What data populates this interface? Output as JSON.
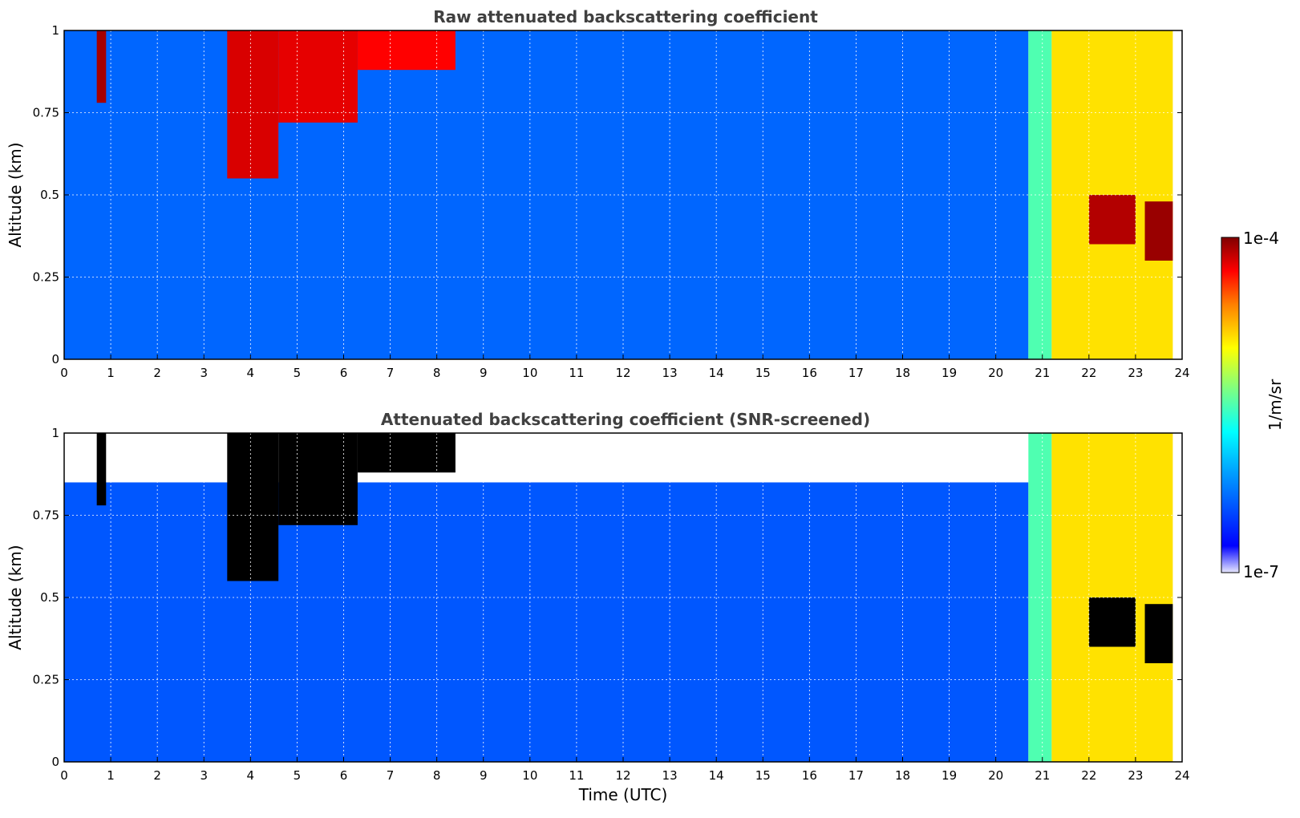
{
  "chart_data": [
    {
      "type": "heatmap",
      "title": "Raw attenuated backscattering coefficient",
      "xlabel": "",
      "ylabel": "Altitude (km)",
      "xlim": [
        0,
        24
      ],
      "ylim": [
        0,
        1
      ],
      "xticks": [
        "0",
        "1",
        "2",
        "3",
        "4",
        "5",
        "6",
        "7",
        "8",
        "9",
        "10",
        "11",
        "12",
        "13",
        "14",
        "15",
        "16",
        "17",
        "18",
        "19",
        "20",
        "21",
        "22",
        "23",
        "24"
      ],
      "yticks": [
        "0",
        "0.25",
        "0.5",
        "0.75",
        "1"
      ],
      "grid": true,
      "colorscale": "jet",
      "features": [
        {
          "start": 0,
          "end": 20.7,
          "top": 1,
          "level": 0.22
        },
        {
          "start": 0.7,
          "end": 0.9,
          "bottom": 0.78,
          "top": 1,
          "level": 0.97
        },
        {
          "start": 3.5,
          "end": 4.6,
          "bottom": 0.55,
          "top": 1,
          "level": 0.93
        },
        {
          "start": 4.6,
          "end": 6.3,
          "bottom": 0.72,
          "top": 1,
          "level": 0.92
        },
        {
          "start": 6.3,
          "end": 8.4,
          "bottom": 0.88,
          "top": 1,
          "level": 0.9
        },
        {
          "start": 20.7,
          "end": 21.2,
          "bottom": 0,
          "top": 1,
          "level": 0.5
        },
        {
          "start": 21.2,
          "end": 23.8,
          "bottom": 0,
          "top": 1,
          "level": 0.7
        },
        {
          "start": 22,
          "end": 23,
          "bottom": 0.35,
          "top": 0.5,
          "level": 0.96
        },
        {
          "start": 23.2,
          "end": 23.8,
          "bottom": 0.3,
          "top": 0.48,
          "level": 0.98
        }
      ]
    },
    {
      "type": "heatmap",
      "title": "Attenuated backscattering coefficient (SNR-screened)",
      "xlabel": "Time (UTC)",
      "ylabel": "Altitude (km)",
      "xlim": [
        0,
        24
      ],
      "ylim": [
        0,
        1
      ],
      "xticks": [
        "0",
        "1",
        "2",
        "3",
        "4",
        "5",
        "6",
        "7",
        "8",
        "9",
        "10",
        "11",
        "12",
        "13",
        "14",
        "15",
        "16",
        "17",
        "18",
        "19",
        "20",
        "21",
        "22",
        "23",
        "24"
      ],
      "yticks": [
        "0",
        "0.25",
        "0.5",
        "0.75",
        "1"
      ],
      "grid": true,
      "colorscale": "jet",
      "features": [
        {
          "start": 0,
          "end": 20.7,
          "top": 0.85,
          "level": 0.2
        },
        {
          "start": 0.7,
          "end": 0.9,
          "bottom": 0.78,
          "top": 1,
          "level": 1.0
        },
        {
          "start": 3.5,
          "end": 4.6,
          "bottom": 0.55,
          "top": 1,
          "level": 1.0
        },
        {
          "start": 4.6,
          "end": 6.3,
          "bottom": 0.72,
          "top": 1,
          "level": 1.0
        },
        {
          "start": 6.3,
          "end": 8.4,
          "bottom": 0.88,
          "top": 1,
          "level": 1.0
        },
        {
          "start": 20.7,
          "end": 21.2,
          "bottom": 0,
          "top": 1,
          "level": 0.5
        },
        {
          "start": 21.2,
          "end": 23.8,
          "bottom": 0,
          "top": 1,
          "level": 0.7
        },
        {
          "start": 22,
          "end": 23,
          "bottom": 0.35,
          "top": 0.5,
          "level": 1.0
        },
        {
          "start": 23.2,
          "end": 23.8,
          "bottom": 0.3,
          "top": 0.48,
          "level": 1.0
        }
      ]
    }
  ],
  "colorbar": {
    "label": "1/m/sr",
    "max_label": "1e-4",
    "min_label": "1e-7",
    "colors": [
      "#e8e8ff",
      "#0000ff",
      "#00a0ff",
      "#00ffff",
      "#80ff80",
      "#ffff00",
      "#ff8000",
      "#ff0000",
      "#800000"
    ]
  }
}
